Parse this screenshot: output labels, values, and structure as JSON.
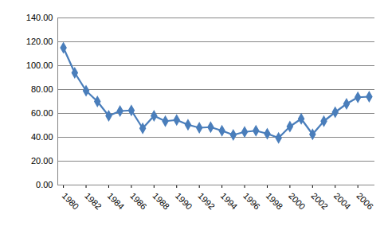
{
  "chart_data": {
    "type": "line",
    "x": [
      1980,
      1981,
      1982,
      1983,
      1984,
      1985,
      1986,
      1987,
      1988,
      1989,
      1990,
      1991,
      1992,
      1993,
      1994,
      1995,
      1996,
      1997,
      1998,
      1999,
      2000,
      2001,
      2002,
      2003,
      2004,
      2005,
      2006,
      2007
    ],
    "values": [
      115,
      94,
      79,
      70,
      58,
      62,
      62.5,
      47.5,
      58,
      53.5,
      54.5,
      50.5,
      48,
      48.5,
      45.5,
      42,
      44.5,
      45.5,
      43,
      39.5,
      49,
      55.5,
      42.5,
      53.5,
      61,
      68,
      73.5,
      74
    ],
    "color": "#4a7ebb",
    "marker": "diamond",
    "line_style": "solid",
    "xlim": [
      1979.5,
      2007.5
    ],
    "xticks": [
      1980,
      1982,
      1984,
      1986,
      1988,
      1990,
      1992,
      1994,
      1996,
      1998,
      2000,
      2002,
      2004,
      2006
    ],
    "ylim": [
      0,
      140
    ],
    "yticks": [
      {
        "value": 0,
        "label": "0.00"
      },
      {
        "value": 20,
        "label": "20.00"
      },
      {
        "value": 40,
        "label": "40.00"
      },
      {
        "value": 60,
        "label": "60.00"
      },
      {
        "value": 80,
        "label": "80.00"
      },
      {
        "value": 100,
        "label": "100.00"
      },
      {
        "value": 120,
        "label": "120.00"
      },
      {
        "value": 140,
        "label": "140.00"
      }
    ],
    "grid": true
  }
}
